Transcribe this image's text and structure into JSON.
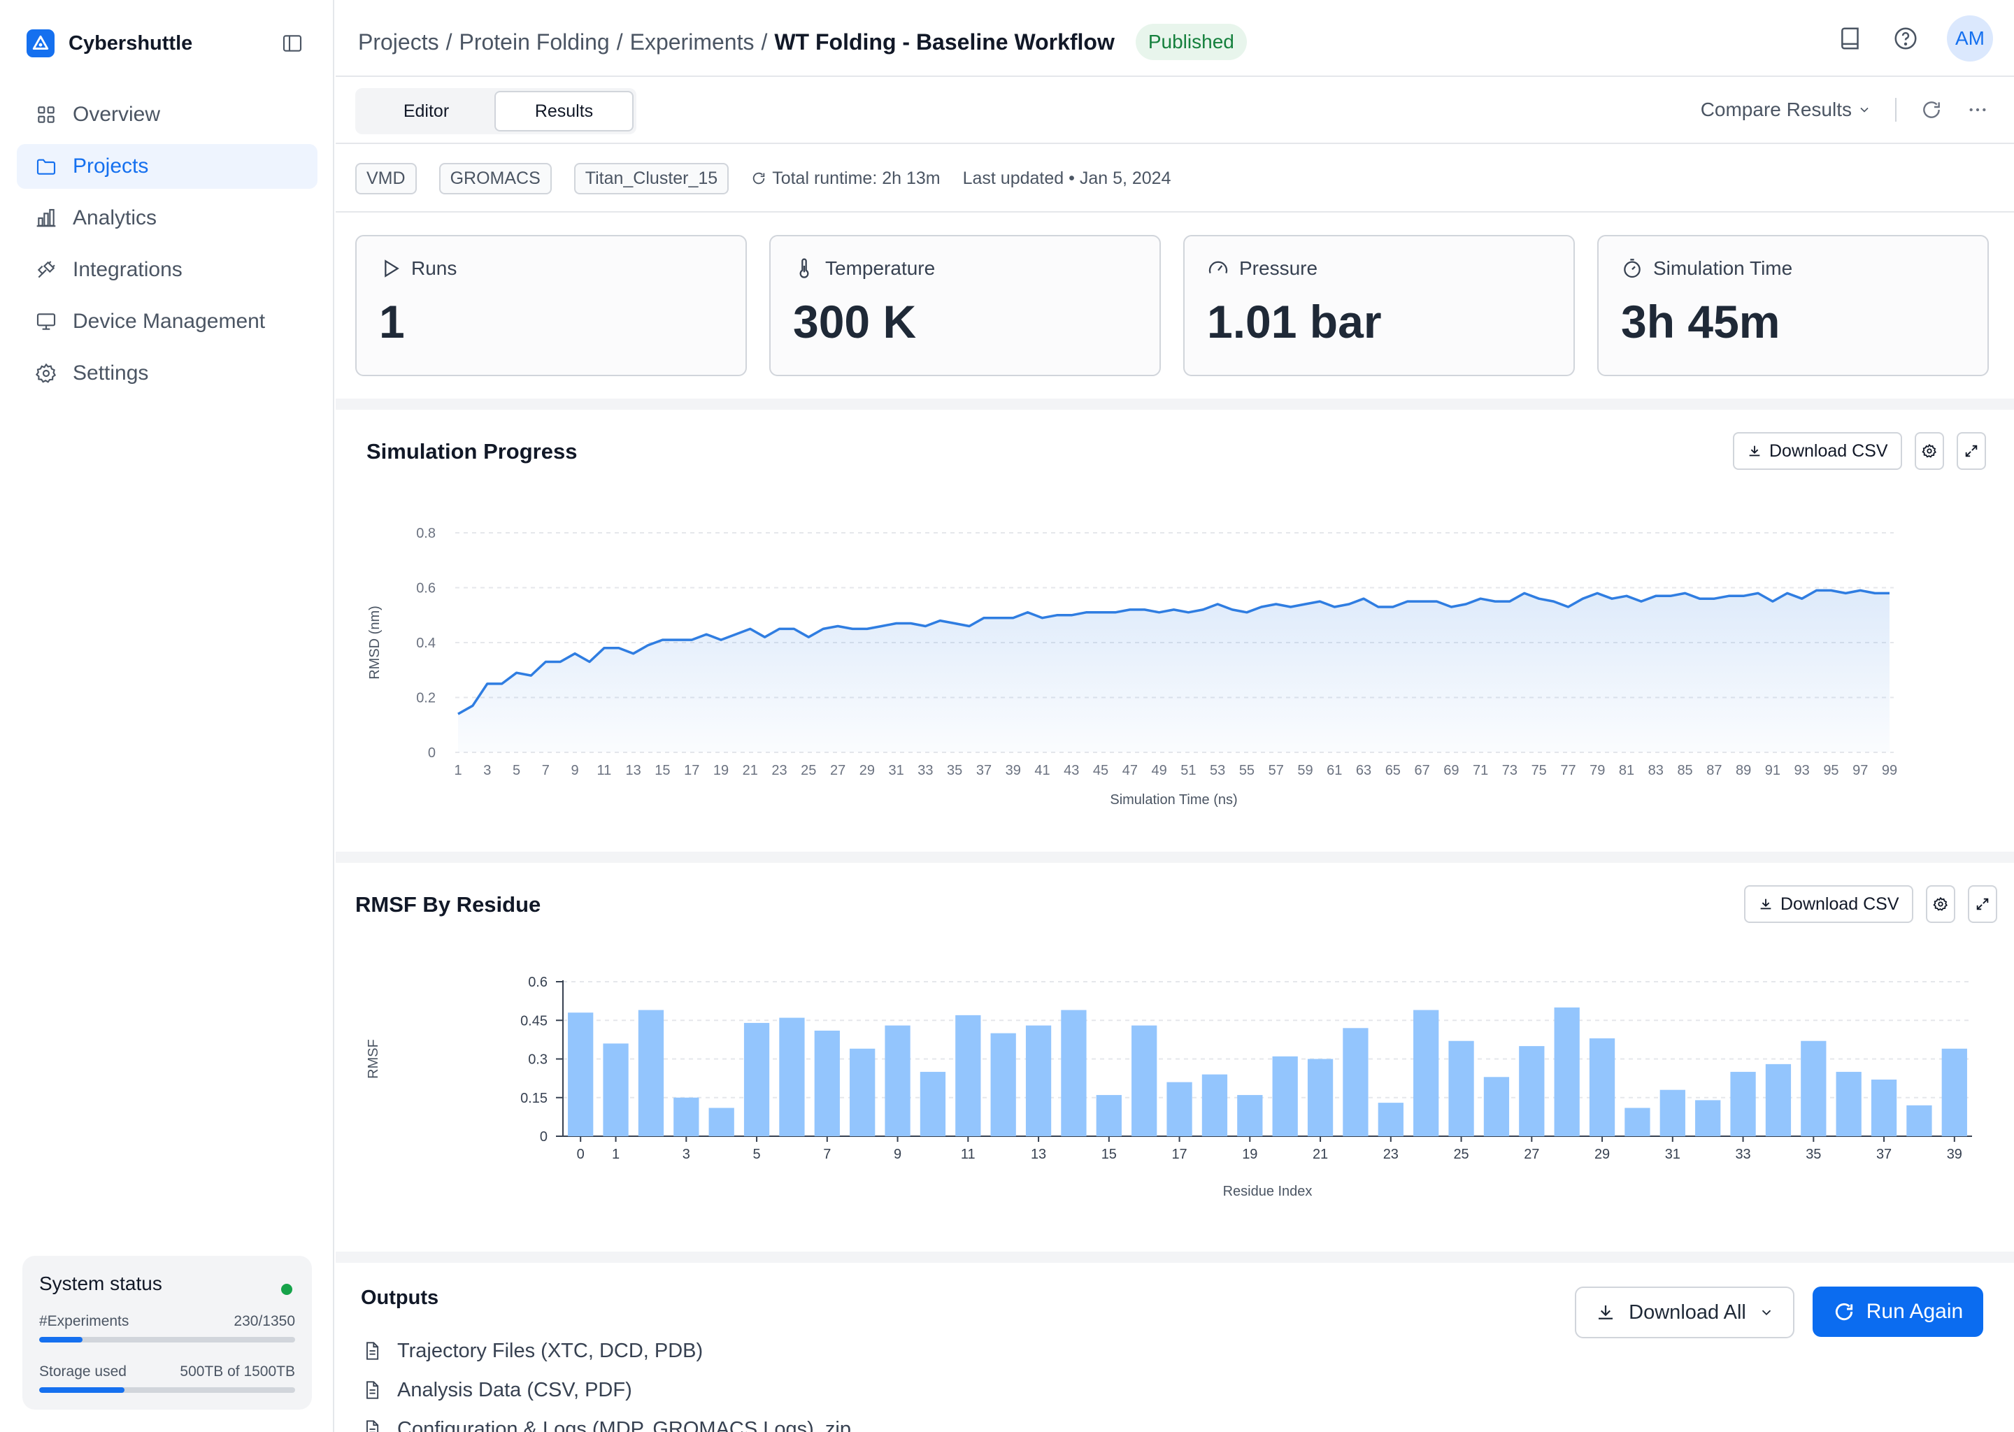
{
  "brand": {
    "name": "Cybershuttle",
    "accent": "#1570ef"
  },
  "sidebar": {
    "items": [
      {
        "label": "Overview",
        "icon": "grid-icon",
        "active": false
      },
      {
        "label": "Projects",
        "icon": "folder-icon",
        "active": true
      },
      {
        "label": "Analytics",
        "icon": "bar-chart-icon",
        "active": false
      },
      {
        "label": "Integrations",
        "icon": "plug-icon",
        "active": false
      },
      {
        "label": "Device Management",
        "icon": "monitor-icon",
        "active": false
      },
      {
        "label": "Settings",
        "icon": "gear-icon",
        "active": false
      }
    ],
    "system_status": {
      "title": "System status",
      "status_color": "#16a34a",
      "experiments": {
        "label": "#Experiments",
        "value": "230/1350",
        "fraction": 0.17
      },
      "storage": {
        "label": "Storage used",
        "value": "500TB of 1500TB",
        "fraction": 0.333
      }
    }
  },
  "header": {
    "breadcrumb": [
      "Projects",
      "Protein Folding",
      "Experiments"
    ],
    "separator": "/",
    "current": "WT Folding - Baseline Workflow",
    "badge": "Published",
    "avatar": "AM"
  },
  "tabs": {
    "items": [
      "Editor",
      "Results"
    ],
    "active": "Results",
    "compare_label": "Compare Results"
  },
  "meta": {
    "chips": [
      "VMD",
      "GROMACS",
      "Titan_Cluster_15"
    ],
    "runtime": "Total runtime: 2h 13m",
    "updated": "Last updated • Jan 5, 2024"
  },
  "stats": [
    {
      "label": "Runs",
      "value": "1",
      "icon": "play-icon"
    },
    {
      "label": "Temperature",
      "value": "300 K",
      "icon": "thermometer-icon"
    },
    {
      "label": "Pressure",
      "value": "1.01 bar",
      "icon": "gauge-icon"
    },
    {
      "label": "Simulation Time",
      "value": "3h 45m",
      "icon": "timer-icon"
    }
  ],
  "panels": {
    "download_csv": "Download CSV",
    "progress_title": "Simulation Progress",
    "rmsf_title": "RMSF By Residue"
  },
  "chart_data": [
    {
      "type": "area",
      "title": "Simulation Progress",
      "xlabel": "Simulation Time (ns)",
      "ylabel": "RMSD (nm)",
      "ylim": [
        0,
        0.8
      ],
      "yticks": [
        0,
        0.2,
        0.4,
        0.6,
        0.8
      ],
      "x_ticks_shown": "odd values 1-99",
      "x": [
        1,
        2,
        3,
        4,
        5,
        6,
        7,
        8,
        9,
        10,
        11,
        12,
        13,
        14,
        15,
        16,
        17,
        18,
        19,
        20,
        21,
        22,
        23,
        24,
        25,
        26,
        27,
        28,
        29,
        30,
        31,
        32,
        33,
        34,
        35,
        36,
        37,
        38,
        39,
        40,
        41,
        42,
        43,
        44,
        45,
        46,
        47,
        48,
        49,
        50,
        51,
        52,
        53,
        54,
        55,
        56,
        57,
        58,
        59,
        60,
        61,
        62,
        63,
        64,
        65,
        66,
        67,
        68,
        69,
        70,
        71,
        72,
        73,
        74,
        75,
        76,
        77,
        78,
        79,
        80,
        81,
        82,
        83,
        84,
        85,
        86,
        87,
        88,
        89,
        90,
        91,
        92,
        93,
        94,
        95,
        96,
        97,
        98,
        99
      ],
      "y": [
        0.14,
        0.17,
        0.25,
        0.25,
        0.29,
        0.28,
        0.33,
        0.33,
        0.36,
        0.33,
        0.38,
        0.38,
        0.36,
        0.39,
        0.41,
        0.41,
        0.41,
        0.43,
        0.41,
        0.43,
        0.45,
        0.42,
        0.45,
        0.45,
        0.42,
        0.45,
        0.46,
        0.45,
        0.45,
        0.46,
        0.47,
        0.47,
        0.46,
        0.48,
        0.47,
        0.46,
        0.49,
        0.49,
        0.49,
        0.51,
        0.49,
        0.5,
        0.5,
        0.51,
        0.51,
        0.51,
        0.52,
        0.52,
        0.51,
        0.52,
        0.51,
        0.52,
        0.54,
        0.52,
        0.51,
        0.53,
        0.54,
        0.53,
        0.54,
        0.55,
        0.53,
        0.54,
        0.56,
        0.53,
        0.53,
        0.55,
        0.55,
        0.55,
        0.53,
        0.54,
        0.56,
        0.55,
        0.55,
        0.58,
        0.56,
        0.55,
        0.53,
        0.56,
        0.58,
        0.56,
        0.57,
        0.55,
        0.57,
        0.57,
        0.58,
        0.56,
        0.56,
        0.57,
        0.57,
        0.58,
        0.55,
        0.58,
        0.56,
        0.59,
        0.59,
        0.58,
        0.59,
        0.58,
        0.58
      ],
      "color": "#2f7de1",
      "grid": true
    },
    {
      "type": "bar",
      "title": "RMSF By Residue",
      "xlabel": "Residue Index",
      "ylabel": "RMSF",
      "ylim": [
        0,
        0.6
      ],
      "yticks": [
        "0",
        "0.15",
        "0.3",
        "0.45",
        "0.6"
      ],
      "tick_labels_shown": [
        0,
        1,
        3,
        5,
        7,
        9,
        11,
        13,
        15,
        17,
        19,
        21,
        23,
        25,
        27,
        29,
        31,
        33,
        35,
        37,
        39
      ],
      "categories": [
        0,
        1,
        2,
        3,
        4,
        5,
        6,
        7,
        8,
        9,
        10,
        11,
        12,
        13,
        14,
        15,
        16,
        17,
        18,
        19,
        20,
        21,
        22,
        23,
        24,
        25,
        26,
        27,
        28,
        29,
        30,
        31,
        32,
        33,
        34,
        35,
        36,
        37,
        38,
        39
      ],
      "values": [
        0.48,
        0.36,
        0.49,
        0.15,
        0.11,
        0.44,
        0.46,
        0.41,
        0.34,
        0.43,
        0.25,
        0.47,
        0.4,
        0.43,
        0.49,
        0.16,
        0.43,
        0.21,
        0.24,
        0.16,
        0.31,
        0.3,
        0.42,
        0.13,
        0.49,
        0.37,
        0.23,
        0.35,
        0.5,
        0.38,
        0.11,
        0.18,
        0.14,
        0.25,
        0.28,
        0.37,
        0.25,
        0.22,
        0.12,
        0.34
      ],
      "color": "#93c5fd",
      "grid": true
    }
  ],
  "outputs": {
    "title": "Outputs",
    "items": [
      "Trajectory Files (XTC, DCD, PDB)",
      "Analysis Data (CSV, PDF)",
      "Configuration & Logs (MDP, GROMACS Logs) .zip"
    ],
    "download_all": "Download All",
    "run_again": "Run Again"
  }
}
